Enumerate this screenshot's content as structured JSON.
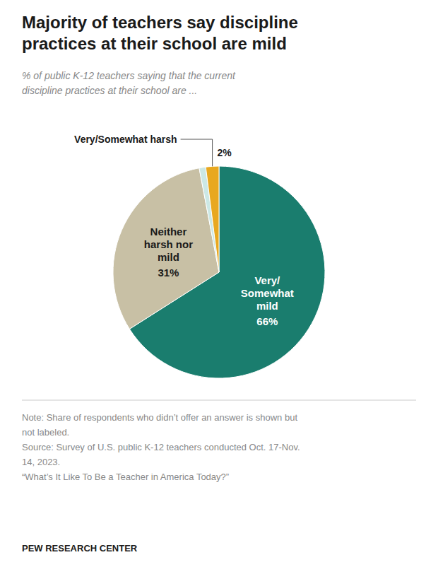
{
  "chart_data": {
    "type": "pie",
    "title": "Majority of teachers say discipline\npractices at their school are mild",
    "subtitle": "% of public K-12 teachers saying that the current\ndiscipline practices at their school are ...",
    "categories": [
      "Very/\nSomewhat\nmild",
      "Neither\nharsh nor\nmild",
      null,
      "Very/Somewhat harsh"
    ],
    "values": [
      66,
      31,
      1,
      2
    ],
    "value_labels": [
      "66%",
      "31%",
      null,
      "2%"
    ],
    "data_labels": true,
    "colors": [
      "#1a7d6e",
      "#c8c0a5",
      "#cce8e5",
      "#e8a820"
    ],
    "note": "Note: Share of respondents who didn’t offer an answer is shown but\nnot labeled.\nSource: Survey of U.S. public K-12 teachers conducted Oct. 17-Nov.\n14, 2023.\n“What’s It Like To Be a Teacher in America Today?”",
    "footer": "PEW RESEARCH CENTER"
  }
}
